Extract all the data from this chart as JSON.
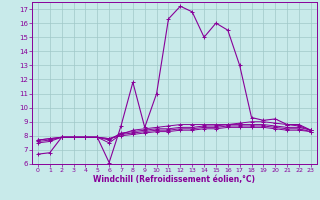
{
  "xlabel": "Windchill (Refroidissement éolien,°C)",
  "bg_color": "#c8eaea",
  "grid_color": "#a0c8c8",
  "line_color": "#880099",
  "spine_color": "#880099",
  "xlim": [
    -0.5,
    23.5
  ],
  "ylim": [
    6,
    17.5
  ],
  "xticks": [
    0,
    1,
    2,
    3,
    4,
    5,
    6,
    7,
    8,
    9,
    10,
    11,
    12,
    13,
    14,
    15,
    16,
    17,
    18,
    19,
    20,
    21,
    22,
    23
  ],
  "yticks": [
    6,
    7,
    8,
    9,
    10,
    11,
    12,
    13,
    14,
    15,
    16,
    17
  ],
  "series": [
    [
      6.7,
      6.8,
      7.9,
      7.9,
      7.9,
      7.9,
      6.1,
      8.7,
      11.8,
      8.6,
      11.0,
      16.3,
      17.2,
      16.8,
      15.0,
      16.0,
      15.5,
      13.0,
      9.3,
      9.1,
      9.2,
      8.8,
      8.8,
      8.4
    ],
    [
      7.5,
      7.6,
      7.9,
      7.9,
      7.9,
      7.9,
      7.5,
      8.1,
      8.4,
      8.5,
      8.6,
      8.7,
      8.8,
      8.8,
      8.8,
      8.8,
      8.8,
      8.9,
      9.0,
      9.0,
      8.9,
      8.8,
      8.7,
      8.4
    ],
    [
      7.6,
      7.7,
      7.9,
      7.9,
      7.9,
      7.9,
      7.7,
      8.2,
      8.3,
      8.4,
      8.5,
      8.5,
      8.6,
      8.6,
      8.7,
      8.7,
      8.8,
      8.8,
      8.8,
      8.8,
      8.7,
      8.6,
      8.6,
      8.4
    ],
    [
      7.7,
      7.8,
      7.9,
      7.9,
      7.9,
      7.9,
      7.8,
      8.1,
      8.2,
      8.3,
      8.4,
      8.4,
      8.5,
      8.5,
      8.6,
      8.6,
      8.7,
      8.7,
      8.7,
      8.7,
      8.6,
      8.5,
      8.5,
      8.3
    ],
    [
      7.7,
      7.8,
      7.9,
      7.9,
      7.9,
      7.9,
      7.8,
      8.0,
      8.1,
      8.2,
      8.3,
      8.3,
      8.4,
      8.4,
      8.5,
      8.5,
      8.6,
      8.6,
      8.6,
      8.6,
      8.5,
      8.4,
      8.4,
      8.3
    ]
  ]
}
